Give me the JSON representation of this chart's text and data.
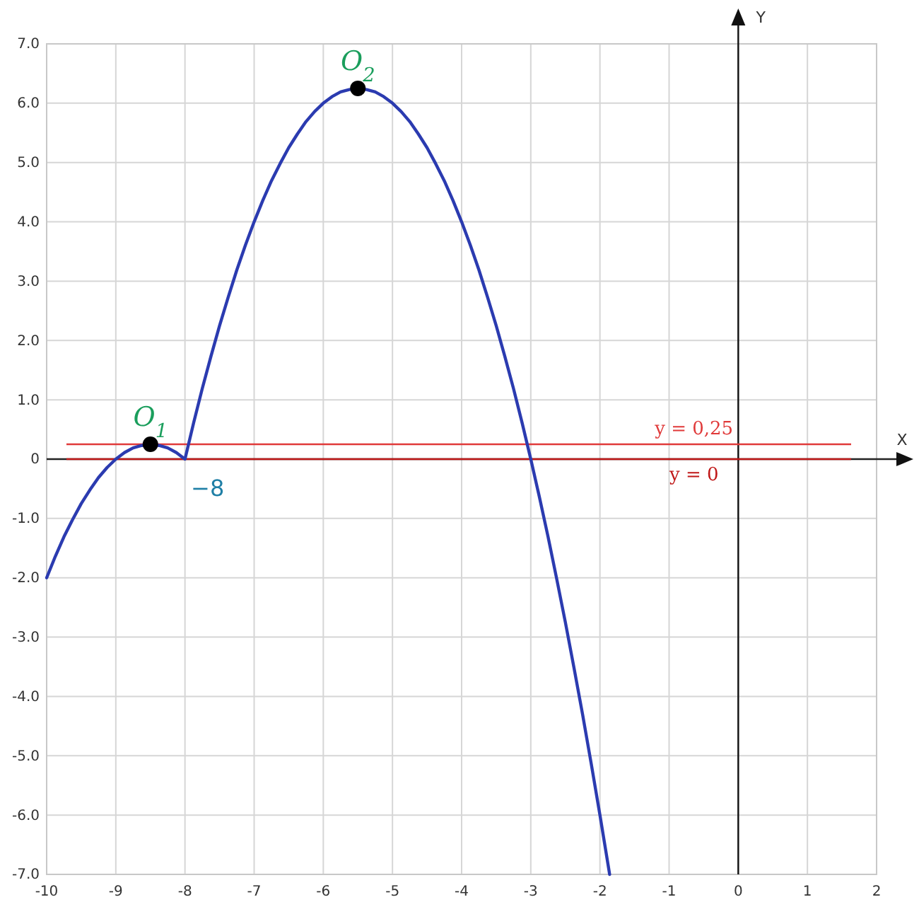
{
  "chart_data": {
    "type": "line",
    "xlabel": "X",
    "ylabel": "Y",
    "x": [
      -10,
      -9.875,
      -9.75,
      -9.625,
      -9.5,
      -9.375,
      -9.25,
      -9.125,
      -9,
      -8.875,
      -8.75,
      -8.625,
      -8.5,
      -8.375,
      -8.25,
      -8.125,
      -8,
      -7.875,
      -7.75,
      -7.625,
      -7.5,
      -7.375,
      -7.25,
      -7.125,
      -7,
      -6.875,
      -6.75,
      -6.625,
      -6.5,
      -6.375,
      -6.25,
      -6.125,
      -6,
      -5.875,
      -5.75,
      -5.625,
      -5.5,
      -5.375,
      -5.25,
      -5.125,
      -5,
      -4.875,
      -4.75,
      -4.625,
      -4.5,
      -4.375,
      -4.25,
      -4.125,
      -4,
      -3.875,
      -3.75,
      -3.625,
      -3.5,
      -3.375,
      -3.25,
      -3.125,
      -3,
      -2.875,
      -2.75,
      -2.625,
      -2.5,
      -2.375,
      -2.25,
      -2.125,
      -2,
      -1.875,
      -1.86
    ],
    "series": [
      {
        "color": "#2b3bb0",
        "values": [
          -2,
          -1.64,
          -1.31,
          -1.02,
          -0.75,
          -0.52,
          -0.31,
          -0.14,
          0,
          0.11,
          0.19,
          0.23,
          0.25,
          0.23,
          0.19,
          0.11,
          0,
          0.61,
          1.19,
          1.73,
          2.25,
          2.73,
          3.19,
          3.61,
          4,
          4.36,
          4.69,
          4.98,
          5.25,
          5.48,
          5.69,
          5.86,
          6,
          6.11,
          6.19,
          6.23,
          6.25,
          6.23,
          6.19,
          6.11,
          6,
          5.86,
          5.69,
          5.48,
          5.25,
          4.98,
          4.69,
          4.36,
          4,
          3.61,
          3.19,
          2.73,
          2.25,
          1.73,
          1.19,
          0.61,
          0,
          -0.64,
          -1.31,
          -2.02,
          -2.75,
          -3.52,
          -4.31,
          -5.14,
          -6,
          -6.89,
          -7.0
        ]
      },
      {
        "type": "scatter",
        "marker": "circle",
        "color": "#000000",
        "x": [
          -8.5,
          -5.5
        ],
        "values": [
          0.25,
          6.25
        ]
      }
    ],
    "xlim": [
      -10,
      2
    ],
    "xticks": [
      -10,
      -9,
      -8,
      -7,
      -6,
      -5,
      -4,
      -3,
      -2,
      -1,
      0,
      1,
      2
    ],
    "ylim": [
      -7,
      7
    ],
    "yticks": [
      {
        "value": 7,
        "label": "7.0"
      },
      {
        "value": 6,
        "label": "6.0"
      },
      {
        "value": 5,
        "label": "5.0"
      },
      {
        "value": 4,
        "label": "4.0"
      },
      {
        "value": 3,
        "label": "3.0"
      },
      {
        "value": 2,
        "label": "2.0"
      },
      {
        "value": 1,
        "label": "1.0"
      },
      0,
      {
        "value": -1,
        "label": "-1.0"
      },
      {
        "value": -2,
        "label": "-2.0"
      },
      {
        "value": -3,
        "label": "-3.0"
      },
      {
        "value": -4,
        "label": "-4.0"
      },
      {
        "value": -5,
        "label": "-5.0"
      },
      {
        "value": -6,
        "label": "-6.0"
      },
      {
        "value": -7,
        "label": "-7.0"
      }
    ],
    "grid": true,
    "ref_lines": [
      {
        "axis": "y",
        "value": 0.25,
        "label": "y = 0,25",
        "color": "#e03a3a"
      },
      {
        "axis": "y",
        "value": 0,
        "label": "y = 0",
        "color": "#c01818"
      }
    ],
    "annotations": [
      {
        "text": "O$_{1}$",
        "x": -8.5,
        "y": 0.25
      },
      {
        "text": "O$_{2}$",
        "x": -5.5,
        "y": 6.25
      },
      {
        "text": "−8",
        "x": -8,
        "y": 0
      }
    ]
  }
}
